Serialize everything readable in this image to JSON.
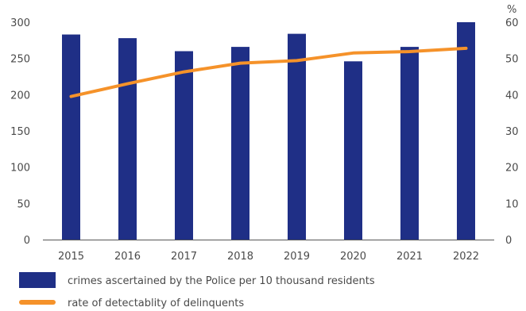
{
  "chart_data": {
    "type": "bar",
    "categories": [
      "2015",
      "2016",
      "2017",
      "2018",
      "2019",
      "2020",
      "2021",
      "2022"
    ],
    "series": [
      {
        "name": "crimes ascertained by the Police per 10 thousand residents",
        "type": "bar",
        "axis": "left",
        "color": "#1f2f86",
        "values": [
          283,
          278,
          260,
          266,
          284,
          246,
          266,
          300
        ]
      },
      {
        "name": "rate of detectablity of delinquents",
        "type": "line",
        "axis": "right",
        "color": "#f5922a",
        "values": [
          39.5,
          43.0,
          46.3,
          48.7,
          49.4,
          51.5,
          51.9,
          52.8
        ]
      }
    ],
    "y_left": {
      "ticks": [
        "0",
        "50",
        "100",
        "150",
        "200",
        "250",
        "300"
      ],
      "ylim": [
        0,
        300
      ]
    },
    "y_right": {
      "unit": "%",
      "ticks": [
        "0",
        "10",
        "20",
        "30",
        "40",
        "50",
        "60"
      ],
      "ylim": [
        0,
        60
      ]
    },
    "grid": false,
    "legend_position": "bottom-left"
  }
}
